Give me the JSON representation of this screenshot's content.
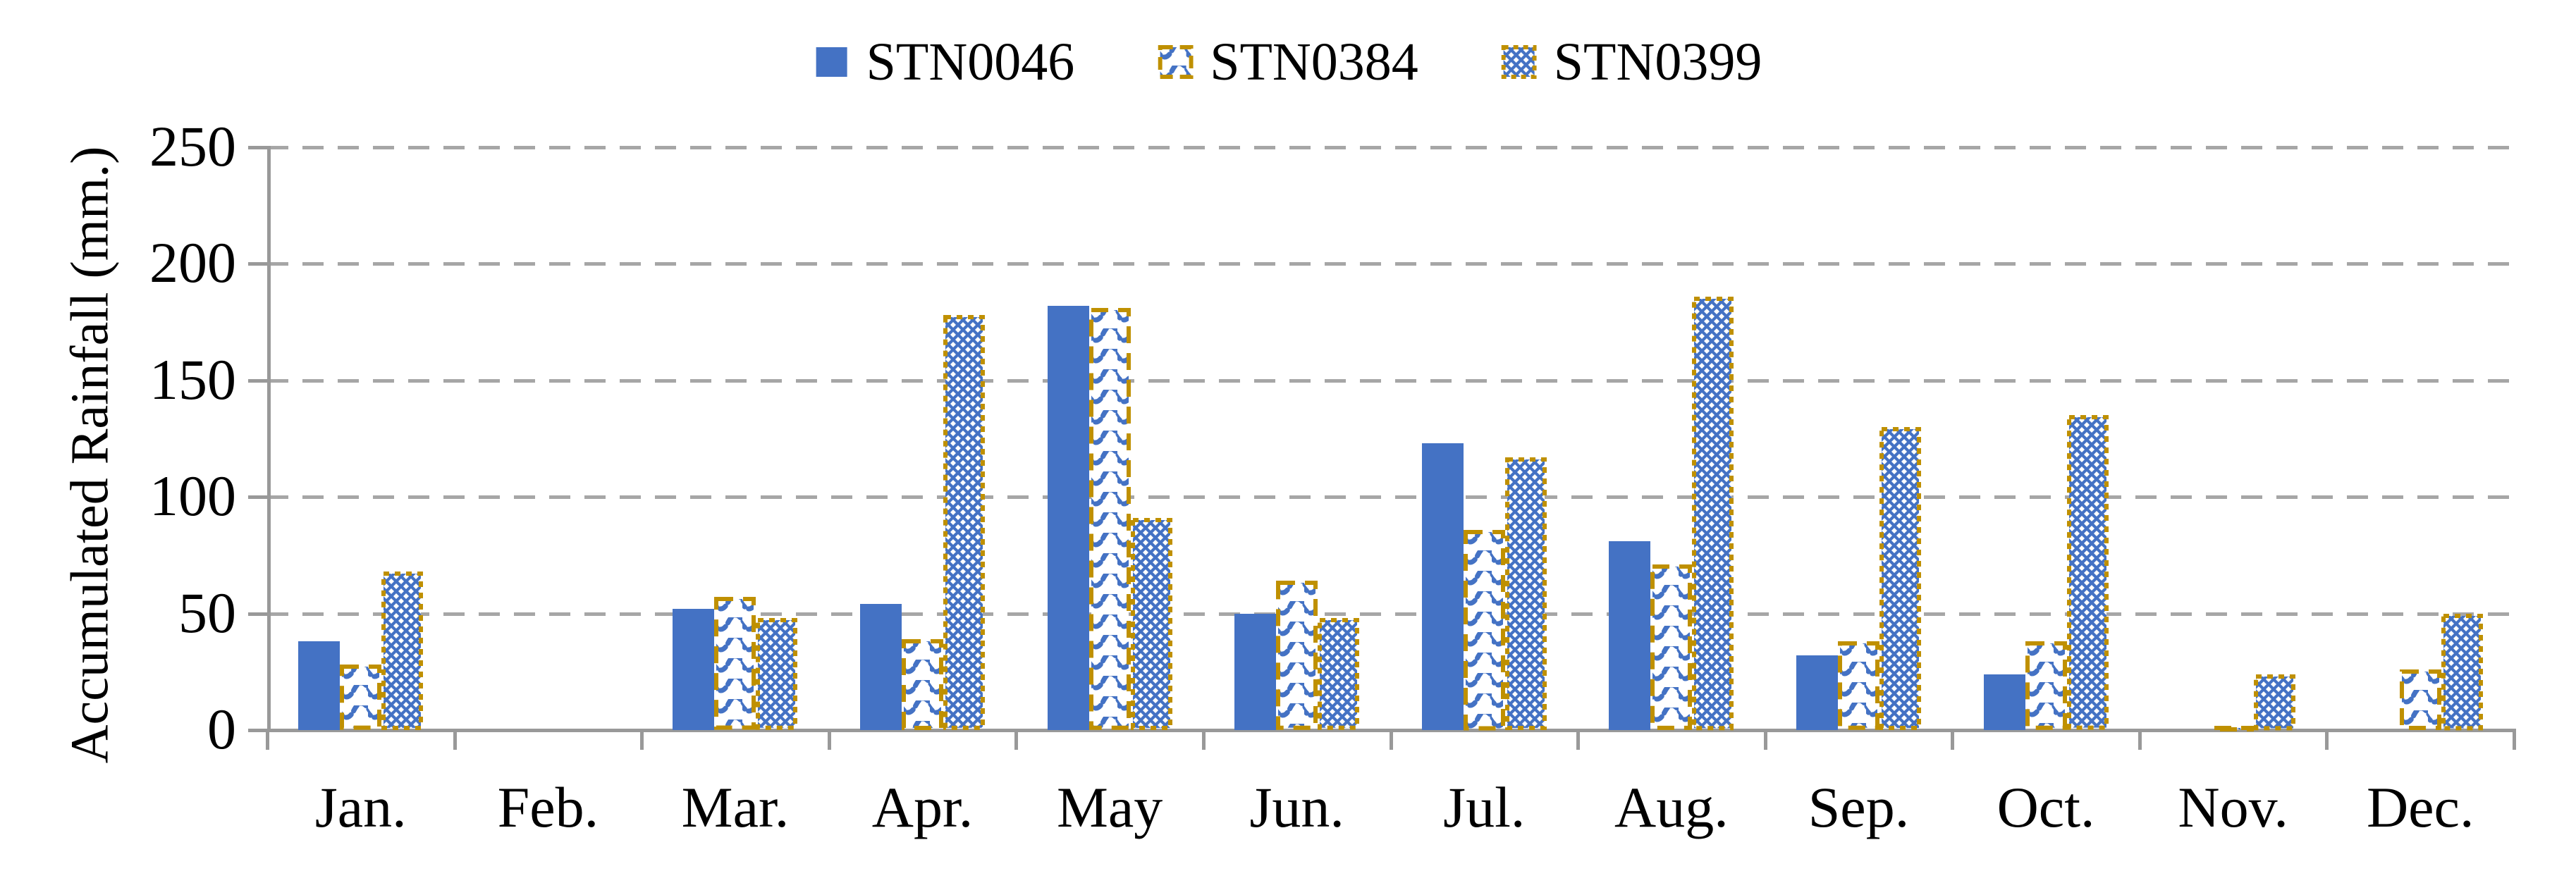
{
  "colors": {
    "bar_blue": "#4472C4",
    "gold_outline": "#BF9000",
    "gridline_gray": "#A6A6A6",
    "axis_gray": "#999999",
    "text_black": "#000000"
  },
  "legend": {
    "items": [
      {
        "label": "STN0046",
        "swatch": "solid-blue-square"
      },
      {
        "label": "STN0384",
        "swatch": "blue-wave-pattern-gold-dashed-border"
      },
      {
        "label": "STN0399",
        "swatch": "blue-diamond-check-pattern-gold-dotted-border"
      }
    ]
  },
  "chart_data": {
    "type": "bar",
    "title": "",
    "ylabel": "Accumulated Rainfall (mm.)",
    "xlabel": "",
    "categories": [
      "Jan.",
      "Feb.",
      "Mar.",
      "Apr.",
      "May",
      "Jun.",
      "Jul.",
      "Aug.",
      "Sep.",
      "Oct.",
      "Nov.",
      "Dec."
    ],
    "series": [
      {
        "name": "STN0046",
        "pattern": "solid",
        "outline": "none",
        "values": [
          38,
          0,
          52,
          54,
          182,
          50,
          123,
          81,
          32,
          24,
          0,
          0
        ]
      },
      {
        "name": "STN0384",
        "pattern": "wave-hatch",
        "outline": "gold-dashed",
        "values": [
          28,
          0,
          57,
          39,
          181,
          64,
          86,
          71,
          38,
          38,
          1,
          26
        ]
      },
      {
        "name": "STN0399",
        "pattern": "diamond-check",
        "outline": "gold-dotted",
        "values": [
          68,
          0,
          48,
          178,
          91,
          48,
          117,
          186,
          130,
          135,
          24,
          50
        ]
      }
    ],
    "yticks": [
      0,
      50,
      100,
      150,
      200,
      250
    ],
    "ylim": [
      0,
      250
    ],
    "grid": "horizontal-dashed",
    "legend_position": "top-center"
  }
}
